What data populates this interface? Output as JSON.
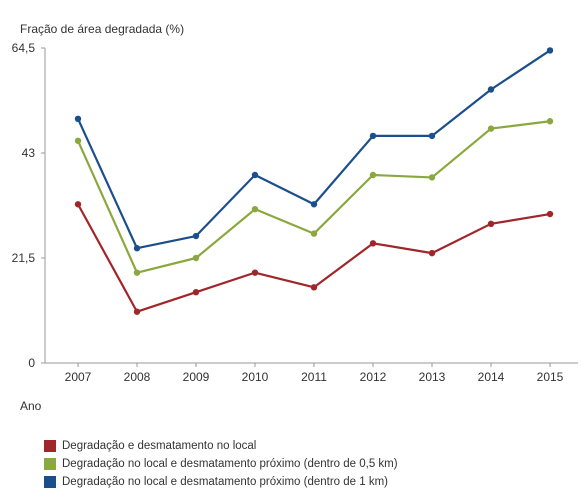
{
  "chart_data": {
    "type": "line",
    "title": "Fração de área degradada (%)",
    "xlabel": "Ano",
    "ylabel": "",
    "ylim": [
      0,
      64.5
    ],
    "yticks": [
      "0",
      "21,5",
      "43",
      "64,5"
    ],
    "ytick_values": [
      0,
      21.5,
      43,
      64.5
    ],
    "grid": false,
    "legend_position": "bottom-left",
    "x": [
      "2007",
      "2008",
      "2009",
      "2010",
      "2011",
      "2012",
      "2013",
      "2014",
      "2015"
    ],
    "series": [
      {
        "name": "Degradação e desmatamento no local",
        "color": "#a1262a",
        "values": [
          32.5,
          10.5,
          14.5,
          18.5,
          15.5,
          24.5,
          22.5,
          28.5,
          30.5
        ]
      },
      {
        "name": "Degradação no local e desmatamento próximo (dentro de 0,5 km)",
        "color": "#8aa83d",
        "values": [
          45.5,
          18.5,
          21.5,
          31.5,
          26.5,
          38.5,
          38.0,
          48.0,
          49.5
        ]
      },
      {
        "name": "Degradação no local e desmatamento próximo (dentro de 1 km)",
        "color": "#1b4f8c",
        "values": [
          50.0,
          23.5,
          26.0,
          38.5,
          32.5,
          46.5,
          46.5,
          56.0,
          64.0
        ]
      }
    ]
  }
}
